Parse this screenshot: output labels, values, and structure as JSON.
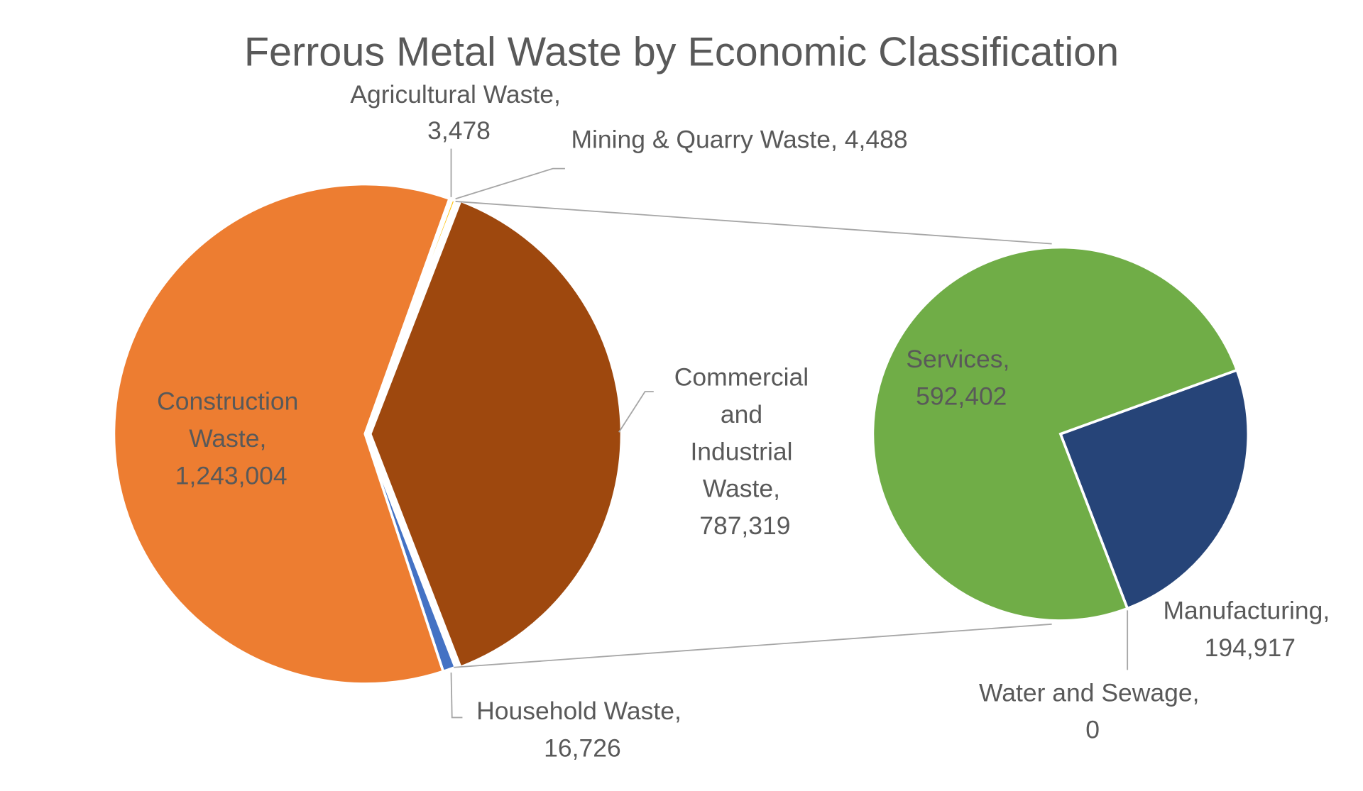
{
  "chart_data": {
    "type": "pie-of-pie",
    "title": "Ferrous Metal Waste by Economic Classification",
    "primary": [
      {
        "name": "Commercial and Industrial Waste",
        "value": 787319,
        "color": "#9e480e",
        "label": [
          "Commercial",
          "and",
          "Industrial",
          "Waste,",
          "787,319"
        ]
      },
      {
        "name": "Household Waste",
        "value": 16726,
        "color": "#4472c4",
        "label": [
          "Household Waste,",
          "16,726"
        ]
      },
      {
        "name": "Construction Waste",
        "value": 1243004,
        "color": "#ed7d31",
        "label": [
          "Construction",
          "Waste,",
          "1,243,004"
        ]
      },
      {
        "name": "Agricultural Waste",
        "value": 3478,
        "color": "#a5a5a5",
        "label": [
          "Agricultural Waste,",
          "3,478"
        ]
      },
      {
        "name": "Mining & Quarry Waste",
        "value": 4488,
        "color": "#ffc000",
        "label": [
          "Mining & Quarry Waste, 4,488"
        ]
      }
    ],
    "secondary": [
      {
        "name": "Manufacturing",
        "value": 194917,
        "color": "#264478",
        "label": [
          "Manufacturing,",
          "194,917"
        ]
      },
      {
        "name": "Water and Sewage",
        "value": 0,
        "color": "#43682b",
        "label": [
          "Water and Sewage,",
          "0"
        ]
      },
      {
        "name": "Services",
        "value": 592402,
        "color": "#70ad47",
        "label": [
          "Services,",
          "592,402"
        ]
      }
    ]
  }
}
